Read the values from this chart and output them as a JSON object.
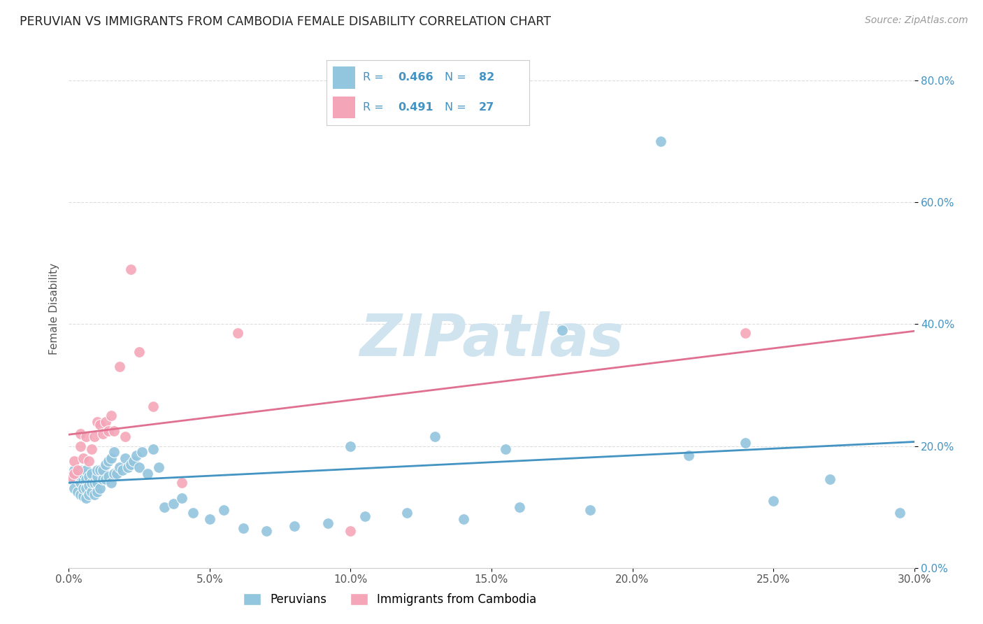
{
  "title": "PERUVIAN VS IMMIGRANTS FROM CAMBODIA FEMALE DISABILITY CORRELATION CHART",
  "source": "Source: ZipAtlas.com",
  "ylabel": "Female Disability",
  "xlim": [
    0.0,
    0.3
  ],
  "ylim": [
    0.0,
    0.85
  ],
  "peruvian_color": "#92c5de",
  "cambodian_color": "#f4a6b8",
  "peruvian_line_color": "#4393c3",
  "cambodian_line_color": "#e07090",
  "legend_text_color": "#4393c3",
  "R_peruvian": "0.466",
  "N_peruvian": "82",
  "R_cambodian": "0.491",
  "N_cambodian": "27",
  "peruvians_x": [
    0.001,
    0.001,
    0.002,
    0.002,
    0.002,
    0.003,
    0.003,
    0.003,
    0.004,
    0.004,
    0.004,
    0.004,
    0.005,
    0.005,
    0.005,
    0.005,
    0.006,
    0.006,
    0.006,
    0.006,
    0.007,
    0.007,
    0.007,
    0.008,
    0.008,
    0.008,
    0.009,
    0.009,
    0.01,
    0.01,
    0.01,
    0.01,
    0.011,
    0.011,
    0.012,
    0.012,
    0.013,
    0.013,
    0.014,
    0.014,
    0.015,
    0.015,
    0.016,
    0.016,
    0.017,
    0.018,
    0.019,
    0.02,
    0.021,
    0.022,
    0.023,
    0.024,
    0.025,
    0.026,
    0.028,
    0.03,
    0.032,
    0.034,
    0.037,
    0.04,
    0.044,
    0.05,
    0.055,
    0.062,
    0.07,
    0.08,
    0.092,
    0.105,
    0.12,
    0.14,
    0.16,
    0.185,
    0.21,
    0.24,
    0.27,
    0.295,
    0.1,
    0.13,
    0.155,
    0.175,
    0.22,
    0.25
  ],
  "peruvians_y": [
    0.145,
    0.155,
    0.13,
    0.15,
    0.16,
    0.125,
    0.145,
    0.155,
    0.12,
    0.14,
    0.15,
    0.16,
    0.118,
    0.13,
    0.145,
    0.155,
    0.115,
    0.13,
    0.145,
    0.16,
    0.12,
    0.135,
    0.15,
    0.125,
    0.14,
    0.155,
    0.12,
    0.14,
    0.125,
    0.14,
    0.15,
    0.16,
    0.13,
    0.16,
    0.145,
    0.16,
    0.145,
    0.17,
    0.15,
    0.175,
    0.14,
    0.18,
    0.155,
    0.19,
    0.155,
    0.165,
    0.16,
    0.18,
    0.165,
    0.17,
    0.175,
    0.185,
    0.165,
    0.19,
    0.155,
    0.195,
    0.165,
    0.1,
    0.105,
    0.115,
    0.09,
    0.08,
    0.095,
    0.065,
    0.06,
    0.068,
    0.073,
    0.085,
    0.09,
    0.08,
    0.1,
    0.095,
    0.7,
    0.205,
    0.145,
    0.09,
    0.2,
    0.215,
    0.195,
    0.39,
    0.185,
    0.11
  ],
  "cambodians_x": [
    0.001,
    0.002,
    0.002,
    0.003,
    0.004,
    0.004,
    0.005,
    0.006,
    0.007,
    0.008,
    0.009,
    0.01,
    0.011,
    0.012,
    0.013,
    0.014,
    0.015,
    0.016,
    0.018,
    0.02,
    0.022,
    0.025,
    0.03,
    0.04,
    0.06,
    0.24,
    0.1
  ],
  "cambodians_y": [
    0.15,
    0.155,
    0.175,
    0.16,
    0.2,
    0.22,
    0.18,
    0.215,
    0.175,
    0.195,
    0.215,
    0.24,
    0.235,
    0.22,
    0.24,
    0.225,
    0.25,
    0.225,
    0.33,
    0.215,
    0.49,
    0.355,
    0.265,
    0.14,
    0.385,
    0.385,
    0.06
  ],
  "background_color": "#ffffff",
  "grid_color": "#dddddd",
  "watermark_color": "#d0e4f0"
}
